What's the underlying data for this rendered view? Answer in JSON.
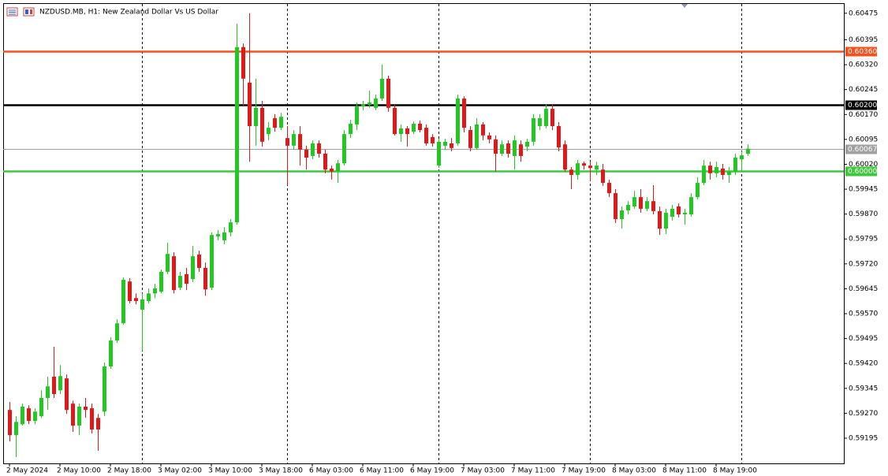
{
  "chart_data": {
    "type": "candlestick",
    "title": "NZDUSD.MB, H1:  New Zealand Dollar Vs US Dollar",
    "up_color": "#22c822",
    "down_color": "#e01818",
    "ylim": [
      0.59119,
      0.60503
    ],
    "yticks": [
      0.60475,
      0.60395,
      {
        "value": 0.6032,
        "label": "0.60320"
      },
      0.60245,
      {
        "value": 0.6017,
        "label": "0.60170"
      },
      0.60095,
      {
        "value": 0.6002,
        "label": "0.60020"
      },
      0.59945,
      {
        "value": 0.5987,
        "label": "0.59870"
      },
      0.59795,
      {
        "value": 0.5972,
        "label": "0.59720"
      },
      0.59645,
      {
        "value": 0.5957,
        "label": "0.59570"
      },
      0.59495,
      {
        "value": 0.5942,
        "label": "0.59420"
      },
      0.59345,
      {
        "value": 0.5927,
        "label": "0.59270"
      },
      0.59195
    ],
    "xlabels": [
      "2 May 2024",
      "2 May 10:00",
      "2 May 18:00",
      "3 May 02:00",
      "3 May 10:00",
      "3 May 18:00",
      "6 May 03:00",
      "6 May 11:00",
      "6 May 19:00",
      "7 May 03:00",
      "7 May 11:00",
      "7 May 19:00",
      "8 May 03:00",
      "8 May 11:00",
      "8 May 19:00"
    ],
    "levels": [
      {
        "value": 0.6036,
        "label": "0.60360",
        "color": "#f4511e",
        "width": 2.5
      },
      {
        "value": 0.602,
        "label": "0.60200",
        "color": "#000000",
        "width": 2.5
      },
      {
        "value": 0.60067,
        "label": "0.60067",
        "color": "#a0a0a0",
        "width": 1
      },
      {
        "value": 0.6,
        "label": "0.60000",
        "color": "#3ec83e",
        "width": 2.5
      }
    ],
    "candles": [
      [
        0.5928,
        0.59304,
        0.59185,
        0.59204
      ],
      [
        0.59204,
        0.59261,
        0.59138,
        0.59244
      ],
      [
        0.59237,
        0.59299,
        0.59233,
        0.5929
      ],
      [
        0.59285,
        0.59294,
        0.59237,
        0.59247
      ],
      [
        0.59247,
        0.59285,
        0.59237,
        0.59275
      ],
      [
        0.59261,
        0.59339,
        0.59256,
        0.59316
      ],
      [
        0.59316,
        0.5938,
        0.5928,
        0.59351
      ],
      [
        0.5938,
        0.5947,
        0.59316,
        0.59328
      ],
      [
        0.59339,
        0.59415,
        0.59328,
        0.59382
      ],
      [
        0.59375,
        0.59387,
        0.59268,
        0.5928
      ],
      [
        0.59299,
        0.59308,
        0.59214,
        0.59233
      ],
      [
        0.59233,
        0.59299,
        0.59204,
        0.5929
      ],
      [
        0.5929,
        0.59316,
        0.59256,
        0.5928
      ],
      [
        0.59285,
        0.59299,
        0.59209,
        0.59221
      ],
      [
        0.59256,
        0.59268,
        0.59157,
        0.59221
      ],
      [
        0.59275,
        0.59423,
        0.59261,
        0.59411
      ],
      [
        0.59411,
        0.59499,
        0.59404,
        0.59489
      ],
      [
        0.59489,
        0.59553,
        0.59482,
        0.59541
      ],
      [
        0.59541,
        0.59679,
        0.59536,
        0.59672
      ],
      [
        0.59667,
        0.59677,
        0.59601,
        0.59608
      ],
      [
        0.59617,
        0.59631,
        0.59598,
        0.59608
      ],
      [
        0.59582,
        0.59631,
        0.59458,
        0.59613
      ],
      [
        0.59608,
        0.59646,
        0.59601,
        0.59631
      ],
      [
        0.59631,
        0.5966,
        0.59617,
        0.59646
      ],
      [
        0.59636,
        0.59703,
        0.59631,
        0.59696
      ],
      [
        0.59696,
        0.59784,
        0.59689,
        0.5975
      ],
      [
        0.59743,
        0.59755,
        0.59631,
        0.59641
      ],
      [
        0.59648,
        0.59696,
        0.59641,
        0.59684
      ],
      [
        0.59689,
        0.59708,
        0.59641,
        0.5966
      ],
      [
        0.59674,
        0.59774,
        0.59665,
        0.59743
      ],
      [
        0.59748,
        0.5976,
        0.59696,
        0.59708
      ],
      [
        0.59708,
        0.59724,
        0.59624,
        0.59643
      ],
      [
        0.59648,
        0.59815,
        0.59641,
        0.59807
      ],
      [
        0.59803,
        0.59822,
        0.59791,
        0.5981
      ],
      [
        0.59791,
        0.59831,
        0.59779,
        0.59815
      ],
      [
        0.59815,
        0.59855,
        0.59803,
        0.59845
      ],
      [
        0.59845,
        0.60444,
        0.59838,
        0.60373
      ],
      [
        0.60373,
        0.60384,
        0.60194,
        0.60278
      ],
      [
        0.60266,
        0.60475,
        0.60028,
        0.60135
      ],
      [
        0.60135,
        0.60278,
        0.60076,
        0.6019
      ],
      [
        0.6019,
        0.60211,
        0.60073,
        0.60088
      ],
      [
        0.60111,
        0.60147,
        0.60092,
        0.6013
      ],
      [
        0.60159,
        0.60171,
        0.60118,
        0.6013
      ],
      [
        0.6013,
        0.60175,
        0.60123,
        0.60163
      ],
      [
        0.60099,
        0.60135,
        0.59957,
        0.60076
      ],
      [
        0.60076,
        0.60123,
        0.60064,
        0.60111
      ],
      [
        0.60111,
        0.60135,
        0.60016,
        0.60064
      ],
      [
        0.60064,
        0.60076,
        0.60004,
        0.6004
      ],
      [
        0.60045,
        0.60092,
        0.60035,
        0.60083
      ],
      [
        0.60083,
        0.60092,
        0.6004,
        0.60052
      ],
      [
        0.60052,
        0.60064,
        0.59993,
        0.60004
      ],
      [
        0.60007,
        0.60016,
        0.59974,
        0.59998
      ],
      [
        0.59998,
        0.60033,
        0.59964,
        0.60023
      ],
      [
        0.60023,
        0.60123,
        0.60016,
        0.60111
      ],
      [
        0.60111,
        0.60154,
        0.60099,
        0.60142
      ],
      [
        0.6014,
        0.60206,
        0.60123,
        0.60194
      ],
      [
        0.60194,
        0.60211,
        0.60183,
        0.60201
      ],
      [
        0.60199,
        0.60242,
        0.6019,
        0.60206
      ],
      [
        0.6019,
        0.6023,
        0.60183,
        0.60218
      ],
      [
        0.60218,
        0.6032,
        0.60211,
        0.60278
      ],
      [
        0.60278,
        0.60287,
        0.60178,
        0.6019
      ],
      [
        0.6019,
        0.60199,
        0.60107,
        0.60111
      ],
      [
        0.60111,
        0.6014,
        0.60088,
        0.60128
      ],
      [
        0.60128,
        0.60135,
        0.60073,
        0.60111
      ],
      [
        0.60118,
        0.60149,
        0.60111,
        0.60142
      ],
      [
        0.60142,
        0.60152,
        0.60116,
        0.60123
      ],
      [
        0.6013,
        0.6014,
        0.60076,
        0.60083
      ],
      [
        0.60102,
        0.60111,
        0.60073,
        0.60083
      ],
      [
        0.60016,
        0.60097,
        0.60009,
        0.60088
      ],
      [
        0.60076,
        0.60097,
        0.60064,
        0.60088
      ],
      [
        0.60083,
        0.60099,
        0.60059,
        0.60069
      ],
      [
        0.60083,
        0.6023,
        0.60076,
        0.60218
      ],
      [
        0.60218,
        0.60225,
        0.60116,
        0.6013
      ],
      [
        0.60123,
        0.60135,
        0.60059,
        0.60069
      ],
      [
        0.60069,
        0.60159,
        0.60064,
        0.6014
      ],
      [
        0.6014,
        0.60147,
        0.60092,
        0.60107
      ],
      [
        0.60107,
        0.60116,
        0.60083,
        0.60095
      ],
      [
        0.60095,
        0.60107,
        0.59998,
        0.60052
      ],
      [
        0.60052,
        0.60092,
        0.60045,
        0.6008
      ],
      [
        0.60083,
        0.60092,
        0.6004,
        0.60052
      ],
      [
        0.60045,
        0.60107,
        0.60004,
        0.60092
      ],
      [
        0.6008,
        0.60092,
        0.60028,
        0.60045
      ],
      [
        0.60073,
        0.60097,
        0.60059,
        0.60088
      ],
      [
        0.60088,
        0.60171,
        0.60076,
        0.60159
      ],
      [
        0.60135,
        0.60171,
        0.60123,
        0.60159
      ],
      [
        0.60135,
        0.60201,
        0.60128,
        0.60187
      ],
      [
        0.60187,
        0.60201,
        0.60123,
        0.60135
      ],
      [
        0.60135,
        0.60147,
        0.60059,
        0.60071
      ],
      [
        0.6008,
        0.60092,
        0.59998,
        0.60004
      ],
      [
        0.60004,
        0.60012,
        0.59945,
        0.59988
      ],
      [
        0.59988,
        0.60033,
        0.59974,
        0.60023
      ],
      [
        0.60023,
        0.60028,
        0.60004,
        0.60016
      ],
      [
        0.60016,
        0.60028,
        0.59969,
        0.60009
      ],
      [
        0.60004,
        0.60028,
        0.59988,
        0.60016
      ],
      [
        0.60004,
        0.60021,
        0.59955,
        0.59964
      ],
      [
        0.59964,
        0.59974,
        0.59921,
        0.59933
      ],
      [
        0.59933,
        0.59945,
        0.59843,
        0.59855
      ],
      [
        0.59855,
        0.59893,
        0.59826,
        0.59881
      ],
      [
        0.59881,
        0.59909,
        0.59869,
        0.59898
      ],
      [
        0.59893,
        0.5994,
        0.59886,
        0.59921
      ],
      [
        0.59921,
        0.59945,
        0.59874,
        0.59886
      ],
      [
        0.59886,
        0.59921,
        0.59879,
        0.59909
      ],
      [
        0.59909,
        0.59957,
        0.59869,
        0.59879
      ],
      [
        0.59879,
        0.59893,
        0.59807,
        0.59826
      ],
      [
        0.59826,
        0.59886,
        0.5981,
        0.59874
      ],
      [
        0.59862,
        0.59898,
        0.5985,
        0.59886
      ],
      [
        0.59893,
        0.59902,
        0.5986,
        0.59869
      ],
      [
        0.59869,
        0.59886,
        0.59838,
        0.59874
      ],
      [
        0.59869,
        0.59933,
        0.59862,
        0.59921
      ],
      [
        0.59921,
        0.59981,
        0.59914,
        0.59964
      ],
      [
        0.59964,
        0.60033,
        0.59957,
        0.60016
      ],
      [
        0.60016,
        0.60028,
        0.59974,
        0.59993
      ],
      [
        0.59993,
        0.60028,
        0.59981,
        0.60012
      ],
      [
        0.60007,
        0.60021,
        0.59974,
        0.59988
      ],
      [
        0.59988,
        0.60012,
        0.59964,
        0.59998
      ],
      [
        0.59998,
        0.60052,
        0.59988,
        0.6004
      ],
      [
        0.60035,
        0.60059,
        0.59998,
        0.60047
      ],
      [
        0.60052,
        0.6008,
        0.60045,
        0.60067
      ]
    ]
  }
}
